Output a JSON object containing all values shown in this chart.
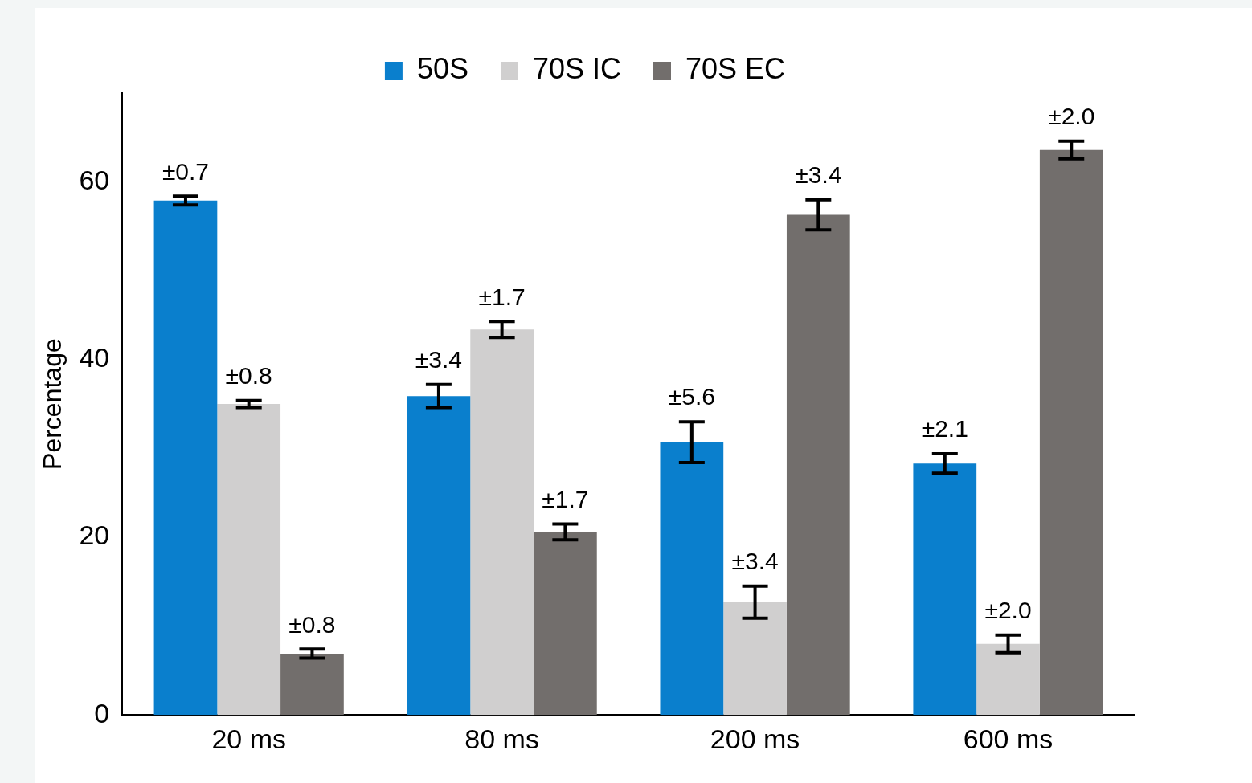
{
  "chart_data": {
    "type": "bar",
    "ylabel": "Percentage",
    "categories": [
      "20 ms",
      "80 ms",
      "200 ms",
      "600 ms"
    ],
    "ylim": [
      0,
      70
    ],
    "yticks": [
      0,
      20,
      40,
      60
    ],
    "grid": false,
    "legend": "top",
    "series": [
      {
        "name": "50S",
        "color": "#0a7fcd",
        "values": [
          57.9,
          35.9,
          30.7,
          28.3
        ],
        "errors": [
          0.5,
          1.3,
          2.3,
          1.1
        ]
      },
      {
        "name": "70S IC",
        "color": "#d0cfcf",
        "values": [
          35.0,
          43.4,
          12.7,
          8.0
        ],
        "errors": [
          0.4,
          0.9,
          1.8,
          1.0
        ]
      },
      {
        "name": "70S EC",
        "color": "#726e6c",
        "values": [
          6.9,
          20.6,
          56.3,
          63.6
        ],
        "errors": [
          0.5,
          0.9,
          1.7,
          1.0
        ]
      }
    ],
    "annotations": [
      "±0.7",
      "±0.8",
      "±0.8",
      "±3.4",
      "±1.7",
      "±1.7",
      "±5.6",
      "±3.4",
      "±3.4",
      "±2.1",
      "±2.0",
      "±2.0"
    ]
  }
}
